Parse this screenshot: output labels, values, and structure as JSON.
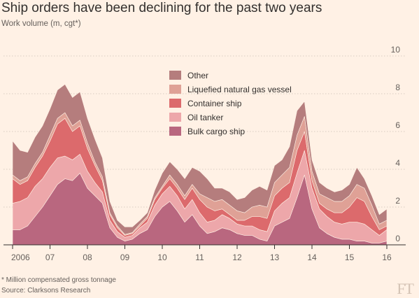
{
  "header": {
    "title": "Ship orders have been declining for the past two years",
    "subtitle": "Work volume (m, cgt*)"
  },
  "footer": {
    "footnote": "* Million compensated gross tonnage",
    "source": "Source: Clarksons Research",
    "logo": "FT"
  },
  "colors": {
    "background": "#fff1e5",
    "grid": "#d8ccc1",
    "axis": "#33302e",
    "tick_text": "#66605c"
  },
  "chart_data": {
    "type": "area",
    "stacked": true,
    "title": "Ship orders have been declining for the past two years",
    "ylabel": "Work volume (m, cgt*)",
    "ylim": [
      0,
      10
    ],
    "yticks": [
      0,
      2,
      4,
      6,
      8,
      10
    ],
    "ytick_labels": [
      "0",
      "2",
      "4",
      "6",
      "8",
      "10"
    ],
    "xlim": [
      2006,
      2016
    ],
    "xticks": [
      2006,
      2007,
      2008,
      2009,
      2010,
      2011,
      2012,
      2013,
      2014,
      2015,
      2016
    ],
    "xtick_labels": [
      "2006",
      "07",
      "08",
      "09",
      "10",
      "11",
      "12",
      "13",
      "14",
      "15",
      "16"
    ],
    "y_axis_side": "right",
    "grid": "horizontal dotted",
    "legend_position": "center-top",
    "x": [
      2006.0,
      2006.2,
      2006.4,
      2006.6,
      2006.8,
      2007.0,
      2007.2,
      2007.4,
      2007.6,
      2007.8,
      2008.0,
      2008.2,
      2008.4,
      2008.6,
      2008.8,
      2009.0,
      2009.2,
      2009.4,
      2009.6,
      2009.8,
      2010.0,
      2010.2,
      2010.4,
      2010.6,
      2010.8,
      2011.0,
      2011.2,
      2011.4,
      2011.6,
      2011.8,
      2012.0,
      2012.2,
      2012.4,
      2012.6,
      2012.8,
      2013.0,
      2013.2,
      2013.4,
      2013.6,
      2013.8,
      2014.0,
      2014.2,
      2014.4,
      2014.6,
      2014.8,
      2015.0,
      2015.2,
      2015.4,
      2015.6,
      2015.8,
      2016.0
    ],
    "series": [
      {
        "name": "Bulk cargo ship",
        "color": "#b9677f",
        "values": [
          0.8,
          0.8,
          1.0,
          1.5,
          2.0,
          2.6,
          3.2,
          3.5,
          3.4,
          3.8,
          3.0,
          2.6,
          2.2,
          0.9,
          0.4,
          0.2,
          0.3,
          0.6,
          0.8,
          1.5,
          2.0,
          2.3,
          1.8,
          1.2,
          1.6,
          1.0,
          0.6,
          0.7,
          0.9,
          0.8,
          0.6,
          0.5,
          0.5,
          0.3,
          0.2,
          1.0,
          1.2,
          1.4,
          2.5,
          3.7,
          1.9,
          0.9,
          0.6,
          0.4,
          0.3,
          0.3,
          0.2,
          0.2,
          0.1,
          0.1,
          0.2
        ]
      },
      {
        "name": "Oil tanker",
        "color": "#eda7aa",
        "values": [
          1.4,
          1.5,
          1.5,
          1.6,
          1.5,
          1.5,
          1.4,
          1.2,
          1.1,
          1.0,
          0.9,
          0.7,
          0.6,
          0.4,
          0.3,
          0.2,
          0.2,
          0.3,
          0.4,
          0.6,
          0.7,
          0.8,
          0.8,
          0.7,
          0.8,
          0.7,
          0.6,
          0.6,
          0.7,
          0.6,
          0.5,
          0.5,
          0.5,
          0.5,
          0.5,
          0.8,
          1.0,
          1.1,
          1.3,
          1.3,
          1.1,
          1.0,
          0.9,
          0.8,
          0.8,
          0.9,
          1.0,
          0.9,
          0.7,
          0.4,
          0.6
        ]
      },
      {
        "name": "Container ship",
        "color": "#dc6a6c",
        "values": [
          1.3,
          0.9,
          0.9,
          1.0,
          1.2,
          1.4,
          1.8,
          2.0,
          1.5,
          1.5,
          1.2,
          0.9,
          0.6,
          0.3,
          0.2,
          0.1,
          0.1,
          0.1,
          0.2,
          0.3,
          0.3,
          0.4,
          0.4,
          0.5,
          0.6,
          0.7,
          0.8,
          0.5,
          0.3,
          0.2,
          0.2,
          0.3,
          0.5,
          0.7,
          0.7,
          0.8,
          0.8,
          0.8,
          1.2,
          1.0,
          0.4,
          0.3,
          0.4,
          0.5,
          0.6,
          0.8,
          1.3,
          1.2,
          0.7,
          0.3,
          0.2
        ]
      },
      {
        "name": "Liquefied natural gas vessel",
        "color": "#dfa196",
        "values": [
          0.2,
          0.2,
          0.2,
          0.2,
          0.2,
          0.3,
          0.3,
          0.3,
          0.3,
          0.3,
          0.3,
          0.2,
          0.2,
          0.1,
          0.1,
          0.05,
          0.05,
          0.1,
          0.1,
          0.1,
          0.1,
          0.2,
          0.2,
          0.2,
          0.2,
          0.3,
          0.5,
          0.5,
          0.5,
          0.5,
          0.5,
          0.4,
          0.5,
          0.6,
          0.6,
          0.7,
          0.7,
          0.8,
          0.8,
          0.8,
          0.5,
          0.5,
          0.6,
          0.6,
          0.6,
          0.6,
          0.7,
          0.7,
          0.6,
          0.3,
          0.3
        ]
      },
      {
        "name": "Other",
        "color": "#b57d7d",
        "values": [
          1.8,
          1.6,
          1.3,
          1.4,
          1.4,
          1.4,
          1.5,
          1.5,
          1.5,
          1.5,
          1.3,
          1.2,
          1.0,
          0.6,
          0.3,
          0.4,
          0.3,
          0.2,
          0.2,
          0.4,
          0.7,
          0.7,
          0.8,
          0.9,
          0.9,
          1.2,
          1.0,
          0.7,
          0.6,
          0.7,
          0.6,
          0.8,
          0.9,
          1.0,
          0.9,
          0.9,
          0.8,
          1.1,
          1.3,
          0.8,
          0.6,
          0.6,
          0.5,
          0.5,
          0.6,
          0.6,
          0.9,
          0.5,
          0.5,
          0.5,
          0.6
        ]
      }
    ]
  }
}
